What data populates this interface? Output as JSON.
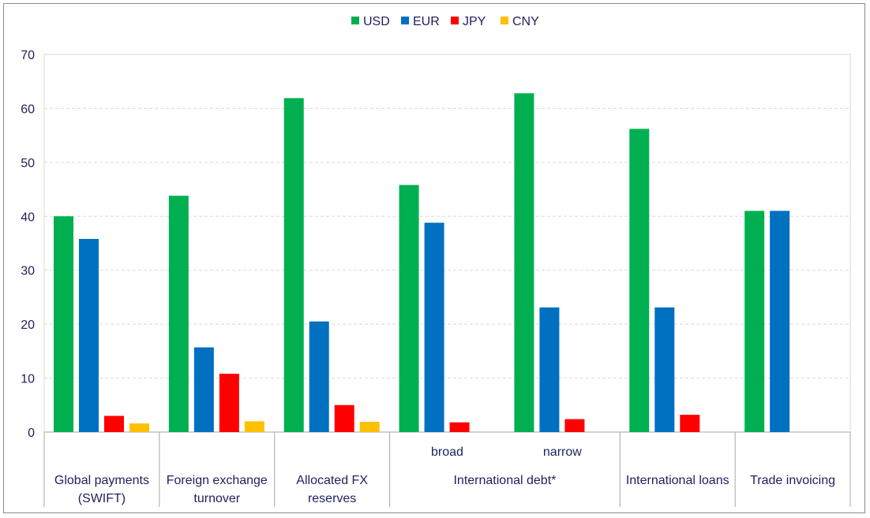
{
  "chart_data": {
    "type": "bar",
    "title": "",
    "xlabel": "",
    "ylabel": "",
    "ylim": [
      0,
      70
    ],
    "yticks": [
      0,
      10,
      20,
      30,
      40,
      50,
      60,
      70
    ],
    "grid": true,
    "legend_position": "top-center",
    "groups": [
      {
        "label_lines": [
          "Global payments",
          "(SWIFT)"
        ],
        "clusters": [
          {
            "sub": "",
            "values": [
              40,
              35.8,
              3.0,
              1.6
            ]
          }
        ]
      },
      {
        "label_lines": [
          "Foreign exchange",
          "turnover"
        ],
        "clusters": [
          {
            "sub": "",
            "values": [
              43.8,
              15.7,
              10.8,
              2.0
            ]
          }
        ]
      },
      {
        "label_lines": [
          "Allocated FX",
          "reserves"
        ],
        "clusters": [
          {
            "sub": "",
            "values": [
              61.9,
              20.5,
              5.0,
              1.9
            ]
          }
        ]
      },
      {
        "label_lines": [
          "International debt*"
        ],
        "clusters": [
          {
            "sub": "broad",
            "values": [
              45.8,
              38.8,
              1.8,
              null
            ]
          },
          {
            "sub": "narrow",
            "values": [
              62.8,
              23.1,
              2.4,
              null
            ]
          }
        ]
      },
      {
        "label_lines": [
          "International loans"
        ],
        "clusters": [
          {
            "sub": "",
            "values": [
              56.2,
              23.1,
              3.2,
              null
            ]
          }
        ]
      },
      {
        "label_lines": [
          "Trade invoicing"
        ],
        "clusters": [
          {
            "sub": "",
            "values": [
              41.0,
              41.0,
              null,
              null
            ]
          }
        ]
      }
    ],
    "series": [
      {
        "name": "USD",
        "color": "#00b050"
      },
      {
        "name": "EUR",
        "color": "#0070c0"
      },
      {
        "name": "JPY",
        "color": "#ff0000"
      },
      {
        "name": "CNY",
        "color": "#ffc000"
      }
    ]
  }
}
